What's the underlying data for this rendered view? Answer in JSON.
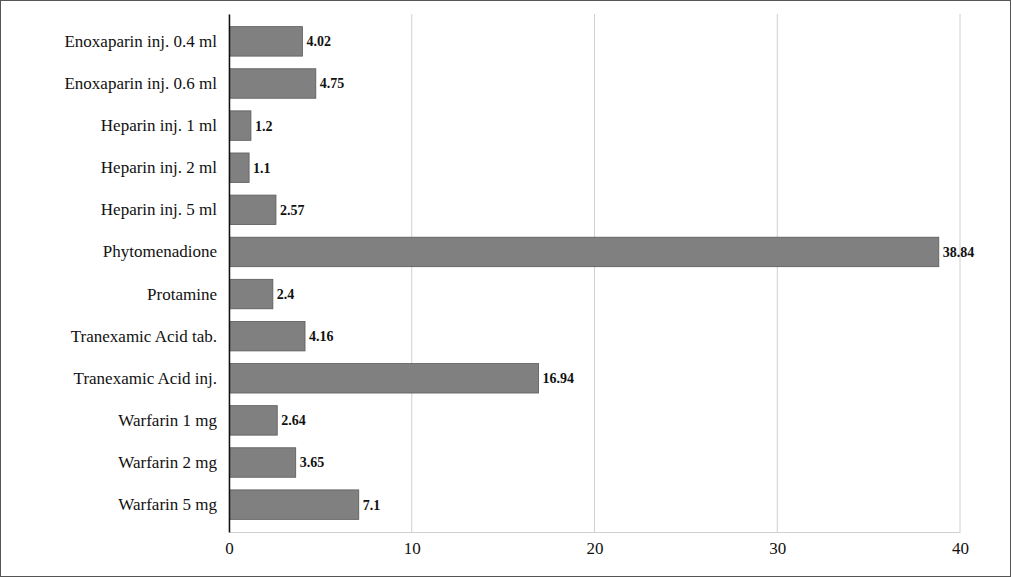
{
  "chart_data": {
    "type": "bar",
    "orientation": "horizontal",
    "categories": [
      "Enoxaparin inj. 0.4 ml",
      "Enoxaparin inj. 0.6 ml",
      "Heparin inj. 1 ml",
      "Heparin inj. 2 ml",
      "Heparin inj. 5 ml",
      "Phytomenadione",
      "Protamine",
      "Tranexamic Acid tab.",
      "Tranexamic Acid inj.",
      "Warfarin 1 mg",
      "Warfarin 2 mg",
      "Warfarin 5 mg"
    ],
    "values": [
      4.02,
      4.75,
      1.2,
      1.1,
      2.57,
      38.84,
      2.4,
      4.16,
      16.94,
      2.64,
      3.65,
      7.1
    ],
    "color": "#808080",
    "xlim": [
      0,
      40
    ],
    "xticks": [
      0,
      10,
      20,
      30,
      40
    ],
    "grid": true,
    "data_labels": true
  }
}
